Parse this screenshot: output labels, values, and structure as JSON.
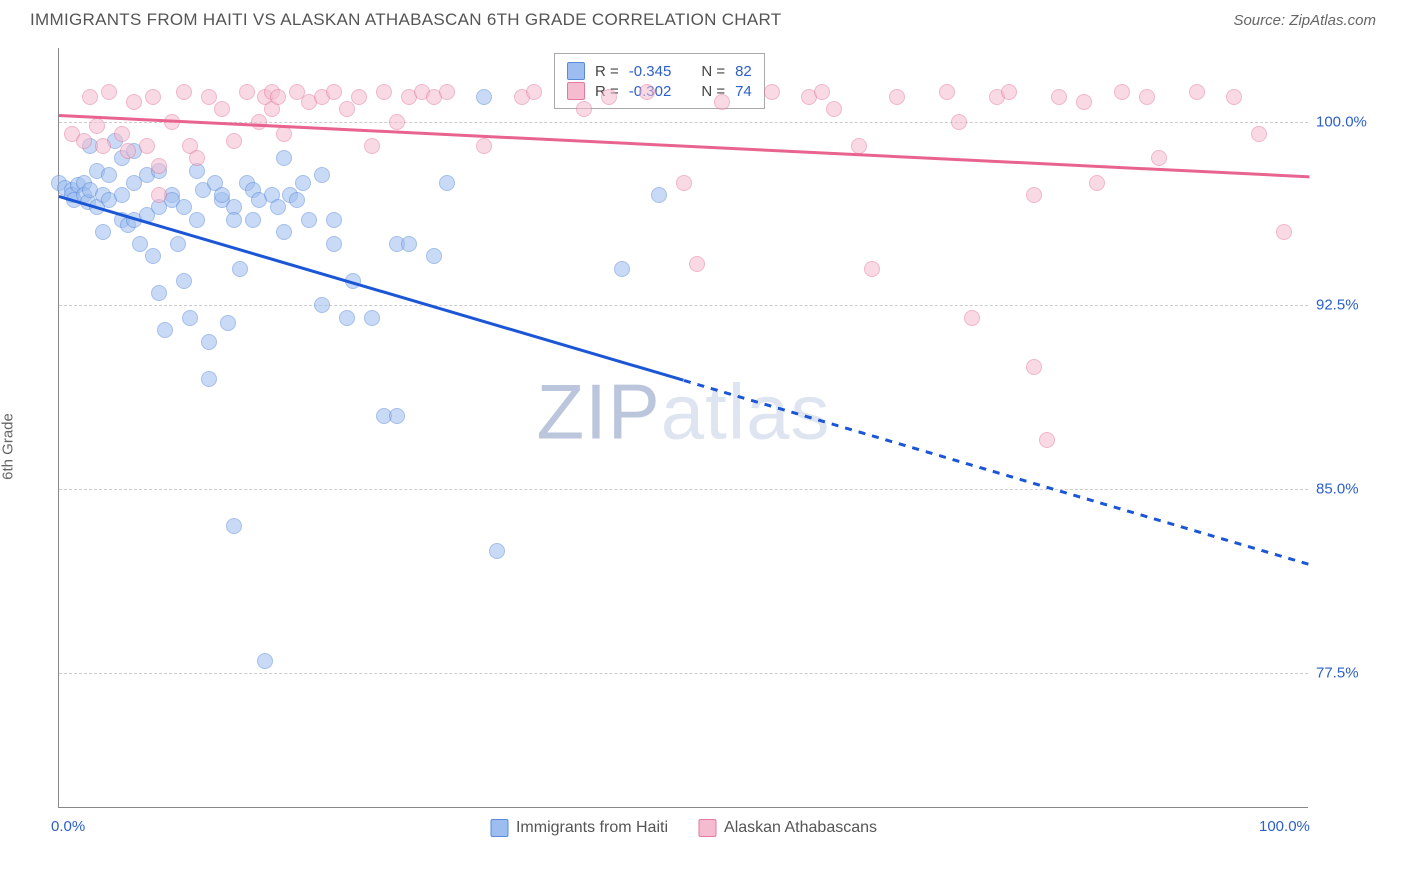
{
  "title": "IMMIGRANTS FROM HAITI VS ALASKAN ATHABASCAN 6TH GRADE CORRELATION CHART",
  "source": "Source: ZipAtlas.com",
  "y_axis_label": "6th Grade",
  "watermark_a": "ZIP",
  "watermark_b": "atlas",
  "chart": {
    "type": "scatter",
    "xlim": [
      0,
      100
    ],
    "ylim": [
      72,
      103
    ],
    "y_ticks": [
      77.5,
      85.0,
      92.5,
      100.0
    ],
    "y_tick_labels": [
      "77.5%",
      "85.0%",
      "92.5%",
      "100.0%"
    ],
    "x_ticks": [
      0,
      100
    ],
    "x_tick_labels": [
      "0.0%",
      "100.0%"
    ],
    "background_color": "#ffffff",
    "grid_color": "#cccccc",
    "series": [
      {
        "name": "Immigrants from Haiti",
        "color_fill": "#9dbdf0",
        "color_stroke": "#5a8bd8",
        "trend_color": "#1b56d6",
        "R": "-0.345",
        "N": "82",
        "trend": {
          "x1": 0,
          "y1": 97.0,
          "x2": 50,
          "y2": 89.5,
          "x2_dash": 100,
          "y2_dash": 82.0
        },
        "points": [
          [
            0,
            97.5
          ],
          [
            0.5,
            97.3
          ],
          [
            1,
            97.2
          ],
          [
            1,
            97.0
          ],
          [
            1.2,
            96.8
          ],
          [
            1.5,
            97.4
          ],
          [
            2,
            97.5
          ],
          [
            2,
            97.0
          ],
          [
            2.3,
            96.7
          ],
          [
            2.5,
            99.0
          ],
          [
            2.5,
            97.2
          ],
          [
            3,
            98.0
          ],
          [
            3,
            96.5
          ],
          [
            3.5,
            97.0
          ],
          [
            3.5,
            95.5
          ],
          [
            4,
            97.8
          ],
          [
            4,
            96.8
          ],
          [
            4.5,
            99.2
          ],
          [
            5,
            98.5
          ],
          [
            5,
            97.0
          ],
          [
            5,
            96.0
          ],
          [
            5.5,
            95.8
          ],
          [
            6,
            98.8
          ],
          [
            6,
            97.5
          ],
          [
            6,
            96.0
          ],
          [
            6.5,
            95.0
          ],
          [
            7,
            97.8
          ],
          [
            7,
            96.2
          ],
          [
            7.5,
            94.5
          ],
          [
            8,
            98.0
          ],
          [
            8,
            96.5
          ],
          [
            8,
            93.0
          ],
          [
            8.5,
            91.5
          ],
          [
            9,
            97.0
          ],
          [
            9,
            96.8
          ],
          [
            9.5,
            95.0
          ],
          [
            10,
            96.5
          ],
          [
            10,
            93.5
          ],
          [
            10.5,
            92.0
          ],
          [
            11,
            98.0
          ],
          [
            11,
            96.0
          ],
          [
            11.5,
            97.2
          ],
          [
            12,
            91.0
          ],
          [
            12,
            89.5
          ],
          [
            12.5,
            97.5
          ],
          [
            13,
            96.8
          ],
          [
            13,
            97.0
          ],
          [
            13.5,
            91.8
          ],
          [
            14,
            96.5
          ],
          [
            14,
            96.0
          ],
          [
            14,
            83.5
          ],
          [
            14.5,
            94.0
          ],
          [
            15,
            97.5
          ],
          [
            15.5,
            96.0
          ],
          [
            15.5,
            97.2
          ],
          [
            16,
            96.8
          ],
          [
            16.5,
            78.0
          ],
          [
            17,
            97.0
          ],
          [
            17.5,
            96.5
          ],
          [
            18,
            98.5
          ],
          [
            18,
            95.5
          ],
          [
            18.5,
            97.0
          ],
          [
            19,
            96.8
          ],
          [
            19.5,
            97.5
          ],
          [
            20,
            96.0
          ],
          [
            21,
            97.8
          ],
          [
            21,
            92.5
          ],
          [
            22,
            96.0
          ],
          [
            22,
            95.0
          ],
          [
            23,
            92.0
          ],
          [
            23.5,
            93.5
          ],
          [
            25,
            92.0
          ],
          [
            26,
            88.0
          ],
          [
            27,
            95.0
          ],
          [
            27,
            88.0
          ],
          [
            28,
            95.0
          ],
          [
            30,
            94.5
          ],
          [
            31,
            97.5
          ],
          [
            34,
            101.0
          ],
          [
            35,
            82.5
          ],
          [
            45,
            94.0
          ],
          [
            48,
            97.0
          ]
        ]
      },
      {
        "name": "Alaskan Athabascans",
        "color_fill": "#f5bccf",
        "color_stroke": "#e57aa0",
        "trend_color": "#e9638f",
        "R": "-0.302",
        "N": "74",
        "trend": {
          "x1": 0,
          "y1": 100.3,
          "x2": 100,
          "y2": 97.8
        },
        "points": [
          [
            1,
            99.5
          ],
          [
            2,
            99.2
          ],
          [
            2.5,
            101.0
          ],
          [
            3,
            99.8
          ],
          [
            3.5,
            99.0
          ],
          [
            4,
            101.2
          ],
          [
            5,
            99.5
          ],
          [
            5.5,
            98.8
          ],
          [
            6,
            100.8
          ],
          [
            7,
            99.0
          ],
          [
            7.5,
            101.0
          ],
          [
            8,
            98.2
          ],
          [
            8,
            97.0
          ],
          [
            9,
            100.0
          ],
          [
            10,
            101.2
          ],
          [
            10.5,
            99.0
          ],
          [
            11,
            98.5
          ],
          [
            12,
            101.0
          ],
          [
            13,
            100.5
          ],
          [
            14,
            99.2
          ],
          [
            15,
            101.2
          ],
          [
            16,
            100.0
          ],
          [
            16.5,
            101.0
          ],
          [
            17,
            101.2
          ],
          [
            17,
            100.5
          ],
          [
            17.5,
            101.0
          ],
          [
            18,
            99.5
          ],
          [
            19,
            101.2
          ],
          [
            20,
            100.8
          ],
          [
            21,
            101.0
          ],
          [
            22,
            101.2
          ],
          [
            23,
            100.5
          ],
          [
            24,
            101.0
          ],
          [
            25,
            99.0
          ],
          [
            26,
            101.2
          ],
          [
            27,
            100.0
          ],
          [
            28,
            101.0
          ],
          [
            29,
            101.2
          ],
          [
            30,
            101.0
          ],
          [
            31,
            101.2
          ],
          [
            34,
            99.0
          ],
          [
            37,
            101.0
          ],
          [
            38,
            101.2
          ],
          [
            42,
            100.5
          ],
          [
            44,
            101.0
          ],
          [
            47,
            101.2
          ],
          [
            50,
            97.5
          ],
          [
            51,
            94.2
          ],
          [
            53,
            100.8
          ],
          [
            57,
            101.2
          ],
          [
            60,
            101.0
          ],
          [
            61,
            101.2
          ],
          [
            62,
            100.5
          ],
          [
            64,
            99.0
          ],
          [
            65,
            94.0
          ],
          [
            67,
            101.0
          ],
          [
            71,
            101.2
          ],
          [
            72,
            100.0
          ],
          [
            73,
            92.0
          ],
          [
            75,
            101.0
          ],
          [
            76,
            101.2
          ],
          [
            78,
            90.0
          ],
          [
            78,
            97.0
          ],
          [
            79,
            87.0
          ],
          [
            80,
            101.0
          ],
          [
            82,
            100.8
          ],
          [
            83,
            97.5
          ],
          [
            85,
            101.2
          ],
          [
            87,
            101.0
          ],
          [
            88,
            98.5
          ],
          [
            91,
            101.2
          ],
          [
            94,
            101.0
          ],
          [
            96,
            99.5
          ],
          [
            98,
            95.5
          ]
        ]
      }
    ]
  },
  "legend_stats": {
    "rows": [
      {
        "swatch": "blue",
        "r_label": "R =",
        "r_val": "-0.345",
        "n_label": "N =",
        "n_val": "82"
      },
      {
        "swatch": "pink",
        "r_label": "R =",
        "r_val": "-0.302",
        "n_label": "N =",
        "n_val": "74"
      }
    ]
  },
  "bottom_legend": [
    {
      "swatch": "blue",
      "label": "Immigrants from Haiti"
    },
    {
      "swatch": "pink",
      "label": "Alaskan Athabascans"
    }
  ]
}
